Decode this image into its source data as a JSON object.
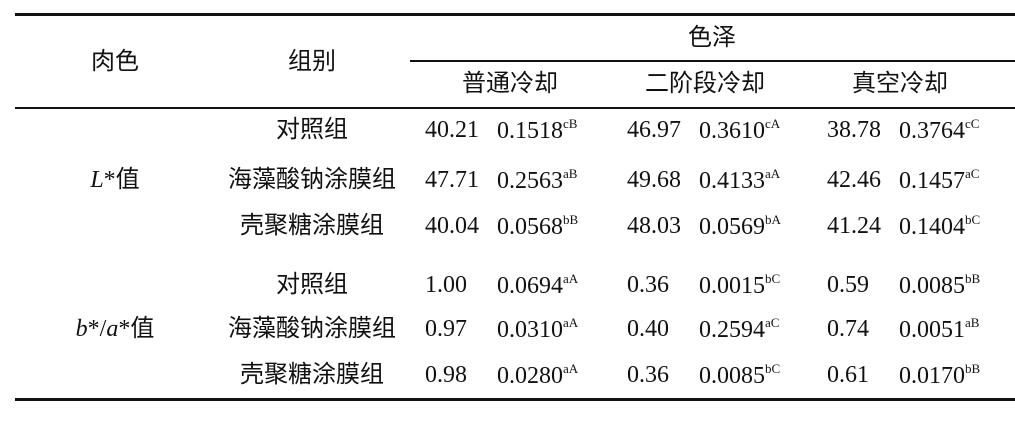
{
  "table": {
    "header": {
      "meat_color": "肉色",
      "group": "组别",
      "color": "色泽",
      "methods": [
        "普通冷却",
        "二阶段冷却",
        "真空冷却"
      ]
    },
    "sections": [
      {
        "label": [
          {
            "text": "L",
            "italic": true
          },
          {
            "text": "*值",
            "italic": false
          }
        ],
        "rows": [
          {
            "group": "对照组",
            "cells": [
              {
                "mean": "40.21",
                "sd": "0.1518",
                "sig": "cB"
              },
              {
                "mean": "46.97",
                "sd": "0.3610",
                "sig": "cA"
              },
              {
                "mean": "38.78",
                "sd": "0.3764",
                "sig": "cC"
              }
            ]
          },
          {
            "group": "海藻酸钠涂膜组",
            "cells": [
              {
                "mean": "47.71",
                "sd": "0.2563",
                "sig": "aB"
              },
              {
                "mean": "49.68",
                "sd": "0.4133",
                "sig": "aA"
              },
              {
                "mean": "42.46",
                "sd": "0.1457",
                "sig": "aC"
              }
            ]
          },
          {
            "group": "壳聚糖涂膜组",
            "cells": [
              {
                "mean": "40.04",
                "sd": "0.0568",
                "sig": "bB"
              },
              {
                "mean": "48.03",
                "sd": "0.0569",
                "sig": "bA"
              },
              {
                "mean": "41.24",
                "sd": "0.1404",
                "sig": "bC"
              }
            ]
          }
        ]
      },
      {
        "label": [
          {
            "text": "b",
            "italic": true
          },
          {
            "text": "*/",
            "italic": false
          },
          {
            "text": "a",
            "italic": true
          },
          {
            "text": "*值",
            "italic": false
          }
        ],
        "rows": [
          {
            "group": "对照组",
            "cells": [
              {
                "mean": "1.00",
                "sd": "0.0694",
                "sig": "aA"
              },
              {
                "mean": "0.36",
                "sd": "0.0015",
                "sig": "bC"
              },
              {
                "mean": "0.59",
                "sd": "0.0085",
                "sig": "bB"
              }
            ]
          },
          {
            "group": "海藻酸钠涂膜组",
            "cells": [
              {
                "mean": "0.97",
                "sd": "0.0310",
                "sig": "aA"
              },
              {
                "mean": "0.40",
                "sd": "0.2594",
                "sig": "aC"
              },
              {
                "mean": "0.74",
                "sd": "0.0051",
                "sig": "aB"
              }
            ]
          },
          {
            "group": "壳聚糖涂膜组",
            "cells": [
              {
                "mean": "0.98",
                "sd": "0.0280",
                "sig": "aA"
              },
              {
                "mean": "0.36",
                "sd": "0.0085",
                "sig": "bC"
              },
              {
                "mean": "0.61",
                "sd": "0.0170",
                "sig": "bB"
              }
            ]
          }
        ]
      }
    ]
  }
}
